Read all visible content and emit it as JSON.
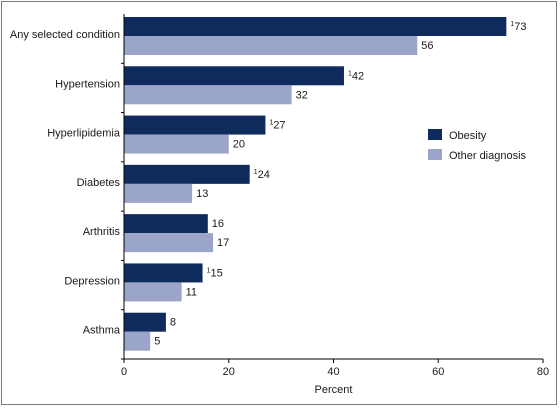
{
  "chart_data": {
    "type": "bar",
    "orientation": "horizontal",
    "categories": [
      "Any selected condition",
      "Hypertension",
      "Hyperlipidemia",
      "Diabetes",
      "Arthritis",
      "Depression",
      "Asthma"
    ],
    "series": [
      {
        "name": "Obesity",
        "values": [
          73,
          42,
          27,
          24,
          16,
          15,
          8
        ],
        "color": "#0f2a5c",
        "labels": [
          "73",
          "42",
          "27",
          "24",
          "16",
          "15",
          "8"
        ],
        "footnote_marks": [
          "1",
          "1",
          "1",
          "1",
          "",
          "1",
          ""
        ]
      },
      {
        "name": "Other diagnosis",
        "values": [
          56,
          32,
          20,
          13,
          17,
          11,
          5
        ],
        "color": "#9aa5c9",
        "labels": [
          "56",
          "32",
          "20",
          "13",
          "17",
          "11",
          "5"
        ],
        "footnote_marks": [
          "",
          "",
          "",
          "",
          "",
          "",
          ""
        ]
      }
    ],
    "xlabel": "Percent",
    "ylabel": "",
    "xlim": [
      0,
      80
    ],
    "xticks": [
      0,
      20,
      40,
      60,
      80
    ],
    "xtick_labels": [
      "0",
      "20",
      "40",
      "60",
      "80"
    ],
    "grid": false,
    "legend_position": "right"
  }
}
